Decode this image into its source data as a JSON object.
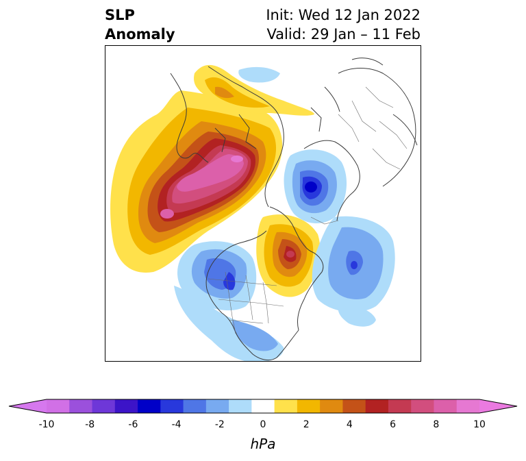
{
  "header": {
    "variable": "SLP",
    "field": "Anomaly",
    "init": "Init: Wed 12 Jan 2022",
    "valid": "Valid: 29 Jan – 11 Feb"
  },
  "map": {
    "projection": "north-polar-stereographic",
    "anomaly_centers": [
      {
        "region": "North Pacific / Bering",
        "sign": "positive",
        "max_hPa": 10
      },
      {
        "region": "Eurasia / Siberia",
        "sign": "positive",
        "max_hPa": 10
      },
      {
        "region": "Western Europe / North Atlantic",
        "sign": "negative",
        "max_hPa": -6
      },
      {
        "region": "Greenland / Canadian Arctic",
        "sign": "positive",
        "max_hPa": 7
      },
      {
        "region": "Western North America",
        "sign": "negative",
        "max_hPa": -4
      },
      {
        "region": "Central North Atlantic",
        "sign": "negative",
        "max_hPa": -4
      }
    ]
  },
  "colorbar": {
    "unit": "hPa",
    "tick_labels": [
      "-10",
      "-8",
      "-6",
      "-4",
      "-2",
      "0",
      "2",
      "4",
      "6",
      "8",
      "10"
    ],
    "levels": [
      -10,
      -9,
      -8,
      -7,
      -6,
      -5,
      -4,
      -3,
      -2,
      -1,
      1,
      2,
      3,
      4,
      5,
      6,
      7,
      8,
      9,
      10
    ],
    "colors": [
      "#d170e6",
      "#9b50dc",
      "#6e37d8",
      "#3c14c8",
      "#0000c8",
      "#2838dc",
      "#4f76e6",
      "#78aaf0",
      "#aedcfa",
      "#ffffff",
      "#ffe14b",
      "#f2b700",
      "#e08a10",
      "#c45218",
      "#b22222",
      "#c43a52",
      "#d24e7e",
      "#dc60aa",
      "#e678d2"
    ],
    "extend_low_color": "#d678ee",
    "extend_high_color": "#ea7ae0"
  }
}
